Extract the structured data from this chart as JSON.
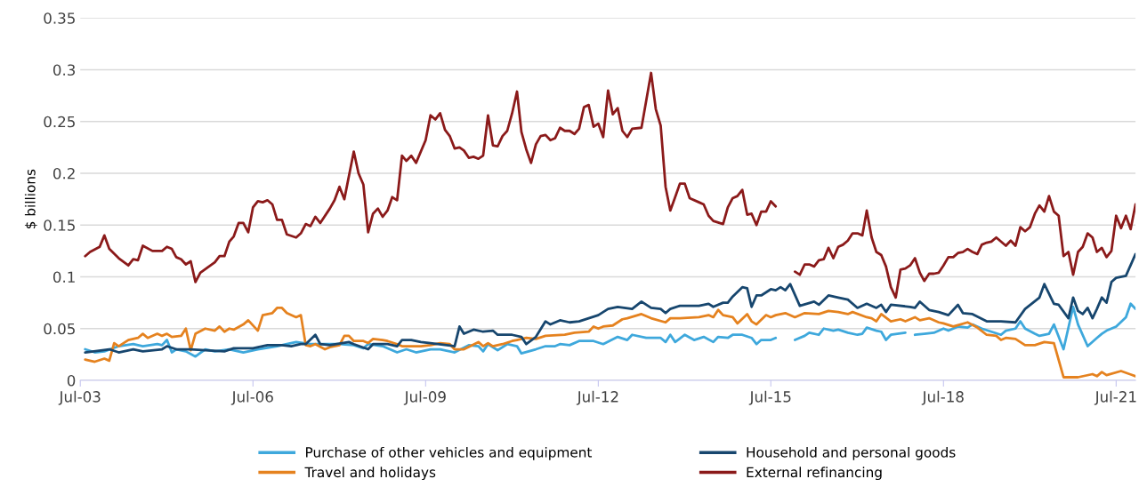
{
  "chart_data": {
    "type": "line",
    "ylabel": "$ billions",
    "ylim": [
      0,
      0.35
    ],
    "yticks": [
      0,
      0.05,
      0.1,
      0.15,
      0.2,
      0.25,
      0.3,
      0.35
    ],
    "xlim": [
      "2003-07",
      "2021-11"
    ],
    "xticks": [
      {
        "value": "2003-07",
        "label": "Jul-03"
      },
      {
        "value": "2006-07",
        "label": "Jul-06"
      },
      {
        "value": "2009-07",
        "label": "Jul-09"
      },
      {
        "value": "2012-07",
        "label": "Jul-12"
      },
      {
        "value": "2015-07",
        "label": "Jul-15"
      },
      {
        "value": "2018-07",
        "label": "Jul-18"
      },
      {
        "value": "2021-07",
        "label": "Jul-21"
      }
    ],
    "grid": "y",
    "legend": "bottom",
    "marker": "none",
    "line_style": "solid",
    "series": [
      {
        "name": "Purchase of other vehicles and equipment",
        "color": "#3ea8dc",
        "x": [
          "2003-08",
          "2003-10",
          "2003-12",
          "2004-03",
          "2004-06",
          "2004-08",
          "2004-11",
          "2004-12",
          "2005-01",
          "2005-02",
          "2005-03",
          "2005-05",
          "2005-07",
          "2005-09",
          "2005-11",
          "2006-02",
          "2006-05",
          "2006-08",
          "2006-12",
          "2007-02",
          "2007-04",
          "2007-07",
          "2007-10",
          "2008-01",
          "2008-04",
          "2008-06",
          "2008-07",
          "2008-10",
          "2009-01",
          "2009-03",
          "2009-05",
          "2009-08",
          "2009-10",
          "2010-01",
          "2010-04",
          "2010-06",
          "2010-07",
          "2010-08",
          "2010-10",
          "2010-12",
          "2011-02",
          "2011-03",
          "2011-06",
          "2011-08",
          "2011-10",
          "2011-11",
          "2012-01",
          "2012-03",
          "2012-06",
          "2012-08",
          "2012-11",
          "2013-01",
          "2013-02",
          "2013-05",
          "2013-08",
          "2013-09",
          "2013-10",
          "2013-11",
          "2014-01",
          "2014-03",
          "2014-05",
          "2014-07",
          "2014-08",
          "2014-10",
          "2014-11",
          "2015-01",
          "2015-03",
          "2015-04",
          "2015-05",
          "2015-07",
          "2015-08",
          "2015-10",
          "2015-12",
          "2016-02",
          "2016-03",
          "2016-05",
          "2016-06",
          "2016-08",
          "2016-09",
          "2016-11",
          "2017-01",
          "2017-02",
          "2017-03",
          "2017-05",
          "2017-06",
          "2017-07",
          "2017-08",
          "2017-11",
          "2017-12",
          "2018-01",
          "2018-03",
          "2018-05",
          "2018-07",
          "2018-08",
          "2018-10",
          "2018-12",
          "2019-01",
          "2019-03",
          "2019-05",
          "2019-07",
          "2019-08",
          "2019-10",
          "2019-11",
          "2019-12",
          "2020-02",
          "2020-03",
          "2020-05",
          "2020-06",
          "2020-08",
          "2020-10",
          "2020-11",
          "2021-01",
          "2021-03",
          "2021-04",
          "2021-05",
          "2021-07",
          "2021-09",
          "2021-10",
          "2021-11"
        ],
        "values": [
          0.03,
          0.027,
          0.028,
          0.033,
          0.035,
          0.033,
          0.035,
          0.034,
          0.039,
          0.027,
          0.03,
          0.028,
          0.023,
          0.03,
          0.028,
          0.03,
          0.027,
          0.03,
          0.033,
          0.035,
          0.037,
          0.035,
          0.035,
          0.035,
          0.034,
          0.031,
          0.035,
          0.033,
          0.027,
          0.03,
          0.027,
          0.03,
          0.03,
          0.027,
          0.034,
          0.033,
          0.028,
          0.035,
          0.029,
          0.035,
          0.033,
          0.026,
          0.03,
          0.033,
          0.033,
          0.035,
          0.034,
          0.038,
          0.038,
          0.035,
          0.042,
          0.039,
          0.044,
          0.041,
          0.041,
          0.037,
          0.044,
          0.037,
          0.044,
          0.039,
          0.042,
          0.037,
          0.042,
          0.041,
          0.044,
          0.044,
          0.041,
          0.035,
          0.039,
          0.039,
          0.041,
          null,
          0.039,
          0.043,
          0.046,
          0.044,
          0.05,
          0.048,
          0.049,
          0.046,
          0.044,
          0.045,
          0.051,
          0.048,
          0.047,
          0.039,
          0.044,
          0.046,
          null,
          0.044,
          0.045,
          0.046,
          0.05,
          0.048,
          0.052,
          0.051,
          0.054,
          0.05,
          0.047,
          0.044,
          0.048,
          0.05,
          0.057,
          0.05,
          0.045,
          0.043,
          0.045,
          0.054,
          0.03,
          0.071,
          0.054,
          0.033,
          0.041,
          0.045,
          0.048,
          0.052,
          0.061,
          0.074,
          0.069
        ]
      },
      {
        "name": "Travel and holidays",
        "color": "#e5821f",
        "x": [
          "2003-08",
          "2003-10",
          "2003-12",
          "2004-01",
          "2004-02",
          "2004-03",
          "2004-05",
          "2004-07",
          "2004-08",
          "2004-09",
          "2004-11",
          "2004-12",
          "2005-01",
          "2005-02",
          "2005-04",
          "2005-05",
          "2005-06",
          "2005-07",
          "2005-09",
          "2005-11",
          "2005-12",
          "2006-01",
          "2006-02",
          "2006-03",
          "2006-05",
          "2006-06",
          "2006-08",
          "2006-09",
          "2006-11",
          "2006-12",
          "2007-01",
          "2007-02",
          "2007-04",
          "2007-05",
          "2007-06",
          "2007-07",
          "2007-08",
          "2007-10",
          "2007-11",
          "2008-01",
          "2008-02",
          "2008-03",
          "2008-04",
          "2008-06",
          "2008-07",
          "2008-08",
          "2008-10",
          "2008-11",
          "2009-01",
          "2009-02",
          "2009-04",
          "2009-06",
          "2009-08",
          "2009-10",
          "2009-12",
          "2010-01",
          "2010-03",
          "2010-06",
          "2010-07",
          "2010-08",
          "2010-09",
          "2010-11",
          "2011-01",
          "2011-02",
          "2011-04",
          "2011-06",
          "2011-08",
          "2011-12",
          "2012-02",
          "2012-05",
          "2012-06",
          "2012-07",
          "2012-08",
          "2012-10",
          "2012-12",
          "2013-01",
          "2013-04",
          "2013-06",
          "2013-09",
          "2013-10",
          "2013-12",
          "2014-04",
          "2014-06",
          "2014-07",
          "2014-08",
          "2014-09",
          "2014-11",
          "2014-12",
          "2015-02",
          "2015-03",
          "2015-04",
          "2015-06",
          "2015-07",
          "2015-08",
          "2015-10",
          "2015-12",
          "2016-02",
          "2016-05",
          "2016-07",
          "2016-09",
          "2016-11",
          "2016-12",
          "2017-03",
          "2017-04",
          "2017-05",
          "2017-06",
          "2017-08",
          "2017-10",
          "2017-11",
          "2018-01",
          "2018-02",
          "2018-04",
          "2018-06",
          "2018-07",
          "2018-09",
          "2018-12",
          "2019-02",
          "2019-04",
          "2019-06",
          "2019-07",
          "2019-08",
          "2019-10",
          "2019-12",
          "2020-02",
          "2020-04",
          "2020-06",
          "2020-08",
          "2020-09",
          "2020-11",
          "2021-02",
          "2021-03",
          "2021-04",
          "2021-05",
          "2021-08",
          "2021-11"
        ],
        "values": [
          0.02,
          0.018,
          0.021,
          0.019,
          0.036,
          0.033,
          0.039,
          0.041,
          0.045,
          0.041,
          0.045,
          0.043,
          0.045,
          0.042,
          0.043,
          0.05,
          0.029,
          0.045,
          0.05,
          0.048,
          0.052,
          0.047,
          0.05,
          0.049,
          0.054,
          0.058,
          0.048,
          0.063,
          0.065,
          0.07,
          0.07,
          0.065,
          0.061,
          0.063,
          0.034,
          0.033,
          0.035,
          0.03,
          0.032,
          0.034,
          0.043,
          0.043,
          0.038,
          0.038,
          0.036,
          0.04,
          0.039,
          0.038,
          0.035,
          0.033,
          0.033,
          0.033,
          0.034,
          0.036,
          0.035,
          0.03,
          0.03,
          0.037,
          0.033,
          0.036,
          0.033,
          0.035,
          0.038,
          0.039,
          0.041,
          0.04,
          0.043,
          0.044,
          0.046,
          0.047,
          0.052,
          0.05,
          0.052,
          0.053,
          0.059,
          0.06,
          0.064,
          0.06,
          0.056,
          0.06,
          0.06,
          0.061,
          0.063,
          0.061,
          0.068,
          0.063,
          0.061,
          0.055,
          0.064,
          0.057,
          0.054,
          0.063,
          0.061,
          0.063,
          0.065,
          0.061,
          0.065,
          0.064,
          0.067,
          0.066,
          0.064,
          0.066,
          0.061,
          0.06,
          0.057,
          0.064,
          0.057,
          0.059,
          0.057,
          0.061,
          0.058,
          0.06,
          0.056,
          0.055,
          0.052,
          0.056,
          0.051,
          0.044,
          0.043,
          0.039,
          0.041,
          0.04,
          0.034,
          0.034,
          0.037,
          0.036,
          0.003,
          0.003,
          0.003,
          0.006,
          0.004,
          0.008,
          0.005,
          0.009,
          0.004
        ]
      },
      {
        "name": "Household and personal goods",
        "color": "#17466e",
        "x": [
          "2003-08",
          "2004-01",
          "2004-03",
          "2004-06",
          "2004-08",
          "2004-12",
          "2005-01",
          "2005-03",
          "2005-06",
          "2005-09",
          "2006-01",
          "2006-03",
          "2006-07",
          "2006-10",
          "2007-01",
          "2007-03",
          "2007-05",
          "2007-06",
          "2007-08",
          "2007-09",
          "2007-11",
          "2008-03",
          "2008-04",
          "2008-07",
          "2008-08",
          "2008-11",
          "2009-01",
          "2009-02",
          "2009-04",
          "2009-06",
          "2009-08",
          "2010-01",
          "2010-02",
          "2010-03",
          "2010-05",
          "2010-07",
          "2010-09",
          "2010-10",
          "2011-01",
          "2011-03",
          "2011-04",
          "2011-06",
          "2011-08",
          "2011-09",
          "2011-11",
          "2012-01",
          "2012-03",
          "2012-07",
          "2012-09",
          "2012-11",
          "2013-02",
          "2013-04",
          "2013-06",
          "2013-08",
          "2013-09",
          "2013-10",
          "2013-12",
          "2014-04",
          "2014-06",
          "2014-07",
          "2014-09",
          "2014-10",
          "2014-11",
          "2015-01",
          "2015-02",
          "2015-03",
          "2015-04",
          "2015-05",
          "2015-07",
          "2015-08",
          "2015-09",
          "2015-10",
          "2015-11",
          "2016-01",
          "2016-04",
          "2016-05",
          "2016-07",
          "2016-09",
          "2016-11",
          "2017-01",
          "2017-03",
          "2017-05",
          "2017-06",
          "2017-07",
          "2017-08",
          "2017-12",
          "2018-01",
          "2018-02",
          "2018-04",
          "2018-06",
          "2018-08",
          "2018-10",
          "2018-11",
          "2019-01",
          "2019-04",
          "2019-07",
          "2019-10",
          "2019-12",
          "2020-03",
          "2020-04",
          "2020-06",
          "2020-07",
          "2020-09",
          "2020-10",
          "2020-11",
          "2020-12",
          "2021-01",
          "2021-02",
          "2021-03",
          "2021-04",
          "2021-05",
          "2021-06",
          "2021-07",
          "2021-09",
          "2021-11"
        ],
        "values": [
          0.027,
          0.03,
          0.027,
          0.03,
          0.028,
          0.03,
          0.033,
          0.03,
          0.03,
          0.029,
          0.028,
          0.031,
          0.031,
          0.034,
          0.034,
          0.033,
          0.035,
          0.035,
          0.044,
          0.035,
          0.034,
          0.037,
          0.035,
          0.03,
          0.035,
          0.035,
          0.033,
          0.039,
          0.039,
          0.037,
          0.036,
          0.033,
          0.052,
          0.045,
          0.049,
          0.047,
          0.048,
          0.044,
          0.044,
          0.042,
          0.035,
          0.042,
          0.057,
          0.054,
          0.058,
          0.056,
          0.057,
          0.063,
          0.069,
          0.071,
          0.069,
          0.076,
          0.07,
          0.069,
          0.065,
          0.069,
          0.072,
          0.072,
          0.074,
          0.071,
          0.075,
          0.075,
          0.081,
          0.09,
          0.089,
          0.071,
          0.082,
          0.082,
          0.088,
          0.087,
          0.09,
          0.087,
          0.093,
          0.072,
          0.076,
          0.073,
          0.082,
          0.08,
          0.078,
          0.07,
          0.074,
          0.07,
          0.073,
          0.066,
          0.073,
          0.071,
          0.07,
          0.076,
          0.068,
          0.066,
          0.063,
          0.073,
          0.065,
          0.064,
          0.057,
          0.057,
          0.056,
          0.069,
          0.08,
          0.093,
          0.074,
          0.073,
          0.06,
          0.08,
          0.067,
          0.064,
          0.07,
          0.06,
          0.069,
          0.08,
          0.075,
          0.095,
          0.099,
          0.101,
          0.122
        ]
      },
      {
        "name": "External refinancing",
        "color": "#8b1a1a",
        "x": [
          "2003-08",
          "2003-09",
          "2003-11",
          "2003-12",
          "2004-01",
          "2004-03",
          "2004-05",
          "2004-06",
          "2004-07",
          "2004-08",
          "2004-10",
          "2004-12",
          "2005-01",
          "2005-02",
          "2005-03",
          "2005-04",
          "2005-05",
          "2005-06",
          "2005-07",
          "2005-08",
          "2005-11",
          "2005-12",
          "2006-01",
          "2006-02",
          "2006-03",
          "2006-04",
          "2006-05",
          "2006-06",
          "2006-07",
          "2006-08",
          "2006-09",
          "2006-10",
          "2006-11",
          "2006-12",
          "2007-01",
          "2007-02",
          "2007-04",
          "2007-05",
          "2007-06",
          "2007-07",
          "2007-08",
          "2007-09",
          "2007-11",
          "2007-12",
          "2008-01",
          "2008-02",
          "2008-04",
          "2008-05",
          "2008-06",
          "2008-07",
          "2008-08",
          "2008-09",
          "2008-10",
          "2008-11",
          "2008-12",
          "2009-01",
          "2009-02",
          "2009-03",
          "2009-04",
          "2009-05",
          "2009-07",
          "2009-08",
          "2009-09",
          "2009-10",
          "2009-11",
          "2009-12",
          "2010-01",
          "2010-02",
          "2010-03",
          "2010-04",
          "2010-05",
          "2010-06",
          "2010-07",
          "2010-08",
          "2010-09",
          "2010-10",
          "2010-11",
          "2010-12",
          "2011-01",
          "2011-02",
          "2011-03",
          "2011-04",
          "2011-05",
          "2011-06",
          "2011-07",
          "2011-08",
          "2011-09",
          "2011-10",
          "2011-11",
          "2011-12",
          "2012-01",
          "2012-02",
          "2012-03",
          "2012-04",
          "2012-05",
          "2012-06",
          "2012-07",
          "2012-08",
          "2012-09",
          "2012-10",
          "2012-11",
          "2012-12",
          "2013-01",
          "2013-02",
          "2013-04",
          "2013-05",
          "2013-06",
          "2013-07",
          "2013-08",
          "2013-09",
          "2013-10",
          "2013-11",
          "2013-12",
          "2014-01",
          "2014-02",
          "2014-04",
          "2014-05",
          "2014-06",
          "2014-07",
          "2014-09",
          "2014-10",
          "2014-11",
          "2014-12",
          "2015-01",
          "2015-02",
          "2015-03",
          "2015-04",
          "2015-05",
          "2015-06",
          "2015-07",
          "2015-08",
          "2015-10",
          "2015-12",
          "2016-01",
          "2016-02",
          "2016-03",
          "2016-04",
          "2016-05",
          "2016-06",
          "2016-07",
          "2016-08",
          "2016-09",
          "2016-10",
          "2016-11",
          "2016-12",
          "2017-01",
          "2017-02",
          "2017-03",
          "2017-04",
          "2017-05",
          "2017-06",
          "2017-07",
          "2017-08",
          "2017-09",
          "2017-10",
          "2017-11",
          "2017-12",
          "2018-01",
          "2018-02",
          "2018-03",
          "2018-04",
          "2018-05",
          "2018-06",
          "2018-07",
          "2018-08",
          "2018-09",
          "2018-10",
          "2018-11",
          "2018-12",
          "2019-01",
          "2019-02",
          "2019-03",
          "2019-04",
          "2019-05",
          "2019-06",
          "2019-08",
          "2019-09",
          "2019-10",
          "2019-11",
          "2019-12",
          "2020-01",
          "2020-02",
          "2020-03",
          "2020-04",
          "2020-05",
          "2020-06",
          "2020-07",
          "2020-08",
          "2020-09",
          "2020-10",
          "2020-11",
          "2020-12",
          "2021-01",
          "2021-02",
          "2021-03",
          "2021-04",
          "2021-05",
          "2021-06",
          "2021-07",
          "2021-08",
          "2021-09",
          "2021-10",
          "2021-11"
        ],
        "values": [
          0.12,
          0.124,
          0.129,
          0.14,
          0.127,
          0.118,
          0.111,
          0.117,
          0.116,
          0.13,
          0.125,
          0.125,
          0.129,
          0.127,
          0.119,
          0.117,
          0.112,
          0.115,
          0.095,
          0.104,
          0.114,
          0.12,
          0.12,
          0.134,
          0.139,
          0.152,
          0.152,
          0.143,
          0.167,
          0.173,
          0.172,
          0.174,
          0.17,
          0.155,
          0.155,
          0.141,
          0.138,
          0.142,
          0.151,
          0.149,
          0.158,
          0.152,
          0.166,
          0.174,
          0.187,
          0.175,
          0.221,
          0.2,
          0.189,
          0.143,
          0.161,
          0.166,
          0.158,
          0.164,
          0.177,
          0.174,
          0.217,
          0.212,
          0.217,
          0.21,
          0.232,
          0.256,
          0.252,
          0.258,
          0.242,
          0.236,
          0.224,
          0.225,
          0.222,
          0.215,
          0.216,
          0.214,
          0.217,
          0.256,
          0.227,
          0.226,
          0.236,
          0.241,
          0.258,
          0.279,
          0.24,
          0.223,
          0.21,
          0.228,
          0.236,
          0.237,
          0.232,
          0.234,
          0.244,
          0.241,
          0.241,
          0.238,
          0.243,
          0.264,
          0.266,
          0.245,
          0.248,
          0.235,
          0.28,
          0.257,
          0.263,
          0.241,
          0.235,
          0.243,
          0.244,
          0.27,
          0.297,
          0.262,
          0.246,
          0.187,
          0.164,
          0.177,
          0.19,
          0.19,
          0.176,
          0.172,
          0.17,
          0.159,
          0.154,
          0.151,
          0.167,
          0.176,
          0.178,
          0.184,
          0.16,
          0.161,
          0.15,
          0.163,
          0.163,
          0.173,
          0.168,
          null,
          0.105,
          0.102,
          0.112,
          0.112,
          0.11,
          0.116,
          0.117,
          0.128,
          0.118,
          0.129,
          0.131,
          0.135,
          0.142,
          0.142,
          0.14,
          0.164,
          0.138,
          0.124,
          0.121,
          0.11,
          0.09,
          0.08,
          0.107,
          0.108,
          0.111,
          0.118,
          0.104,
          0.096,
          0.103,
          0.103,
          0.104,
          0.111,
          0.119,
          0.119,
          0.123,
          0.124,
          0.127,
          0.124,
          0.122,
          0.131,
          0.133,
          0.134,
          0.138,
          0.13,
          0.135,
          0.13,
          0.148,
          0.144,
          0.148,
          0.161,
          0.169,
          0.163,
          0.178,
          0.163,
          0.159,
          0.12,
          0.124,
          0.102,
          0.124,
          0.129,
          0.142,
          0.138,
          0.124,
          0.128,
          0.119,
          0.125,
          0.159,
          0.147,
          0.159,
          0.146,
          0.17
        ]
      }
    ]
  }
}
